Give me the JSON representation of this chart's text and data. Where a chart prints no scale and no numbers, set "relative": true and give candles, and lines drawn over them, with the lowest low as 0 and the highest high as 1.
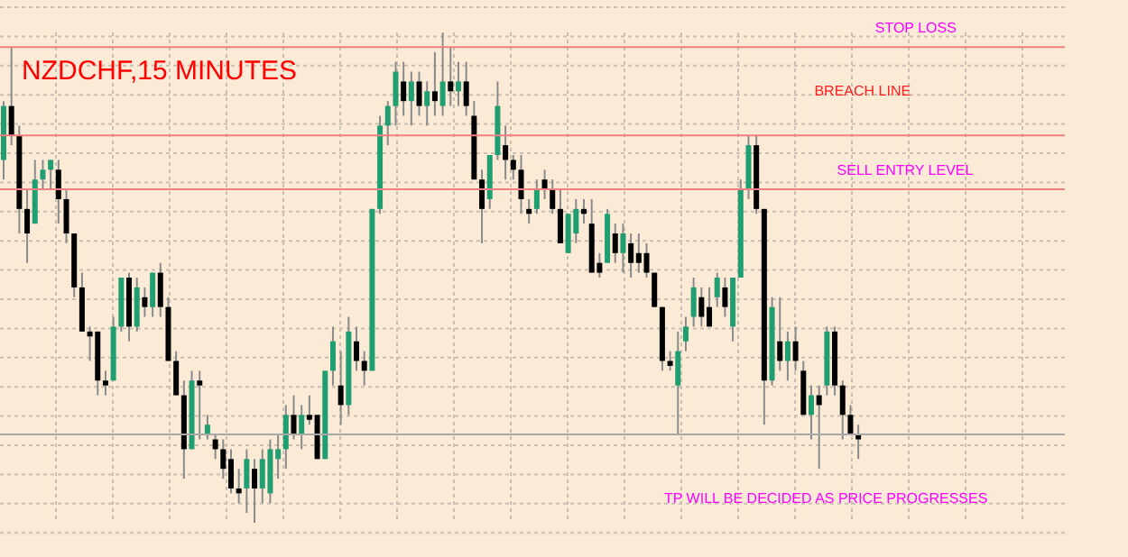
{
  "chart_data": {
    "type": "candlestick",
    "title": "NZDCHF,15 MINUTES",
    "relative": true,
    "grid": true,
    "categories": [
      null,
      null,
      null,
      null,
      null,
      null,
      null,
      null,
      null,
      null,
      null,
      null,
      null,
      null,
      null,
      null,
      null,
      null,
      null,
      null,
      null,
      null,
      null,
      null,
      null,
      null,
      null,
      null,
      null,
      null,
      null,
      null,
      null,
      null,
      null,
      null,
      null,
      null,
      null,
      null,
      null,
      null,
      null,
      null,
      null,
      null,
      null,
      null,
      null,
      null,
      null,
      null,
      null,
      null,
      null,
      null,
      null,
      null,
      null,
      null,
      null,
      null,
      null,
      null,
      null,
      null,
      null,
      null,
      null,
      null,
      null,
      null,
      null,
      null,
      null,
      null,
      null,
      null,
      null,
      null,
      null,
      null,
      null,
      null,
      null,
      null,
      null,
      null,
      null,
      null,
      null,
      null,
      null,
      null,
      null,
      null,
      null,
      null,
      null,
      null,
      null,
      null,
      null,
      null,
      null,
      null,
      null,
      null,
      null,
      null
    ],
    "ohlc": [
      [
        0.74,
        0.86,
        0.7,
        0.85
      ],
      [
        0.85,
        0.97,
        0.77,
        0.79
      ],
      [
        0.79,
        0.81,
        0.59,
        0.64
      ],
      [
        0.64,
        0.68,
        0.53,
        0.59
      ],
      [
        0.61,
        0.74,
        0.61,
        0.7
      ],
      [
        0.7,
        0.74,
        0.68,
        0.72
      ],
      [
        0.72,
        0.74,
        0.68,
        0.74
      ],
      [
        0.72,
        0.74,
        0.61,
        0.66
      ],
      [
        0.66,
        0.68,
        0.57,
        0.59
      ],
      [
        0.59,
        0.59,
        0.46,
        0.48
      ],
      [
        0.48,
        0.51,
        0.39,
        0.39
      ],
      [
        0.39,
        0.4,
        0.33,
        0.38
      ],
      [
        0.39,
        0.39,
        0.26,
        0.29
      ],
      [
        0.29,
        0.31,
        0.26,
        0.28
      ],
      [
        0.29,
        0.42,
        0.29,
        0.4
      ],
      [
        0.4,
        0.5,
        0.39,
        0.5
      ],
      [
        0.5,
        0.51,
        0.37,
        0.4
      ],
      [
        0.4,
        0.5,
        0.39,
        0.48
      ],
      [
        0.46,
        0.48,
        0.42,
        0.44
      ],
      [
        0.44,
        0.51,
        0.42,
        0.51
      ],
      [
        0.51,
        0.53,
        0.42,
        0.44
      ],
      [
        0.44,
        0.46,
        0.33,
        0.33
      ],
      [
        0.33,
        0.35,
        0.26,
        0.26
      ],
      [
        0.26,
        0.29,
        0.09,
        0.15
      ],
      [
        0.15,
        0.31,
        0.15,
        0.29
      ],
      [
        0.29,
        0.31,
        0.17,
        0.28
      ],
      [
        0.18,
        0.22,
        0.17,
        0.2
      ],
      [
        0.17,
        0.18,
        0.13,
        0.15
      ],
      [
        0.15,
        0.17,
        0.09,
        0.11
      ],
      [
        0.13,
        0.15,
        0.06,
        0.07
      ],
      [
        0.07,
        0.11,
        0.04,
        0.06
      ],
      [
        0.07,
        0.15,
        0.02,
        0.13
      ],
      [
        0.11,
        0.13,
        0,
        0.07
      ],
      [
        0.07,
        0.15,
        0.04,
        0.13
      ],
      [
        0.06,
        0.17,
        0.04,
        0.15
      ],
      [
        0.13,
        0.18,
        0.09,
        0.15
      ],
      [
        0.15,
        0.24,
        0.11,
        0.22
      ],
      [
        0.22,
        0.26,
        0.17,
        0.18
      ],
      [
        0.18,
        0.24,
        0.15,
        0.22
      ],
      [
        0.22,
        0.26,
        0.2,
        0.21
      ],
      [
        0.22,
        0.22,
        0.13,
        0.13
      ],
      [
        0.13,
        0.31,
        0.13,
        0.31
      ],
      [
        0.31,
        0.4,
        0.28,
        0.37
      ],
      [
        0.28,
        0.35,
        0.2,
        0.24
      ],
      [
        0.24,
        0.42,
        0.22,
        0.39
      ],
      [
        0.37,
        0.4,
        0.31,
        0.33
      ],
      [
        0.33,
        0.35,
        0.28,
        0.31
      ],
      [
        0.31,
        0.64,
        0.31,
        0.64
      ],
      [
        0.64,
        0.83,
        0.63,
        0.81
      ],
      [
        0.81,
        0.86,
        0.77,
        0.85
      ],
      [
        0.85,
        0.94,
        0.81,
        0.92
      ],
      [
        0.9,
        0.94,
        0.83,
        0.86
      ],
      [
        0.86,
        0.92,
        0.81,
        0.9
      ],
      [
        0.9,
        0.92,
        0.83,
        0.85
      ],
      [
        0.85,
        0.9,
        0.81,
        0.88
      ],
      [
        0.88,
        0.96,
        0.83,
        0.86
      ],
      [
        0.85,
        1,
        0.83,
        0.9
      ],
      [
        0.9,
        0.97,
        0.85,
        0.88
      ],
      [
        0.88,
        0.94,
        0.85,
        0.9
      ],
      [
        0.9,
        0.94,
        0.83,
        0.85
      ],
      [
        0.83,
        0.86,
        0.7,
        0.7
      ],
      [
        0.7,
        0.72,
        0.57,
        0.64
      ],
      [
        0.66,
        0.75,
        0.64,
        0.75
      ],
      [
        0.75,
        0.9,
        0.74,
        0.85
      ],
      [
        0.77,
        0.81,
        0.7,
        0.74
      ],
      [
        0.74,
        0.75,
        0.7,
        0.72
      ],
      [
        0.72,
        0.75,
        0.63,
        0.66
      ],
      [
        0.64,
        0.66,
        0.61,
        0.63
      ],
      [
        0.64,
        0.7,
        0.63,
        0.68
      ],
      [
        0.7,
        0.72,
        0.66,
        0.68
      ],
      [
        0.68,
        0.7,
        0.63,
        0.64
      ],
      [
        0.64,
        0.68,
        0.57,
        0.57
      ],
      [
        0.55,
        0.63,
        0.55,
        0.63
      ],
      [
        0.59,
        0.66,
        0.57,
        0.64
      ],
      [
        0.64,
        0.66,
        0.61,
        0.63
      ],
      [
        0.61,
        0.66,
        0.51,
        0.51
      ],
      [
        0.53,
        0.55,
        0.5,
        0.51
      ],
      [
        0.53,
        0.64,
        0.53,
        0.63
      ],
      [
        0.59,
        0.61,
        0.53,
        0.55
      ],
      [
        0.55,
        0.61,
        0.51,
        0.59
      ],
      [
        0.57,
        0.59,
        0.5,
        0.53
      ],
      [
        0.55,
        0.59,
        0.51,
        0.53
      ],
      [
        0.55,
        0.57,
        0.5,
        0.51
      ],
      [
        0.51,
        0.51,
        0.44,
        0.44
      ],
      [
        0.44,
        0.44,
        0.31,
        0.33
      ],
      [
        0.33,
        0.35,
        0.31,
        0.32
      ],
      [
        0.28,
        0.39,
        0.18,
        0.35
      ],
      [
        0.37,
        0.42,
        0.35,
        0.4
      ],
      [
        0.42,
        0.5,
        0.4,
        0.48
      ],
      [
        0.46,
        0.48,
        0.4,
        0.42
      ],
      [
        0.44,
        0.48,
        0.4,
        0.4
      ],
      [
        0.46,
        0.51,
        0.44,
        0.5
      ],
      [
        0.48,
        0.5,
        0.42,
        0.44
      ],
      [
        0.4,
        0.5,
        0.37,
        0.5
      ],
      [
        0.5,
        0.7,
        0.5,
        0.68
      ],
      [
        0.68,
        0.79,
        0.66,
        0.77
      ],
      [
        0.77,
        0.79,
        0.63,
        0.64
      ],
      [
        0.64,
        0.64,
        0.2,
        0.29
      ],
      [
        0.29,
        0.46,
        0.28,
        0.44
      ],
      [
        0.37,
        0.46,
        0.31,
        0.33
      ],
      [
        0.33,
        0.39,
        0.29,
        0.37
      ],
      [
        0.37,
        0.4,
        0.31,
        0.33
      ],
      [
        0.31,
        0.33,
        0.22,
        0.22
      ],
      [
        0.22,
        0.28,
        0.17,
        0.26
      ],
      [
        0.26,
        0.28,
        0.11,
        0.24
      ],
      [
        0.28,
        0.4,
        0.26,
        0.39
      ],
      [
        0.39,
        0.4,
        0.26,
        0.28
      ],
      [
        0.28,
        0.29,
        0.17,
        0.22
      ],
      [
        0.22,
        0.24,
        0.18,
        0.18
      ],
      [
        0.18,
        0.2,
        0.13,
        0.17
      ]
    ],
    "ref_lines": [
      {
        "axis": "y",
        "value": 0.97,
        "label": "STOP LOSS",
        "color": "#f08080"
      },
      {
        "axis": "y",
        "value": 0.79,
        "label": "BREACH LINE",
        "color": "#f08080"
      },
      {
        "axis": "y",
        "value": 0.68,
        "label": "SELL   ENTRY LEVEL",
        "color": "#f08080"
      },
      {
        "axis": "y",
        "value": 0.18,
        "label": null,
        "color": "#a8a8a8"
      }
    ],
    "annotations": [
      "TP WILL BE DECIDED AS PRICE PROGRESSES"
    ]
  }
}
